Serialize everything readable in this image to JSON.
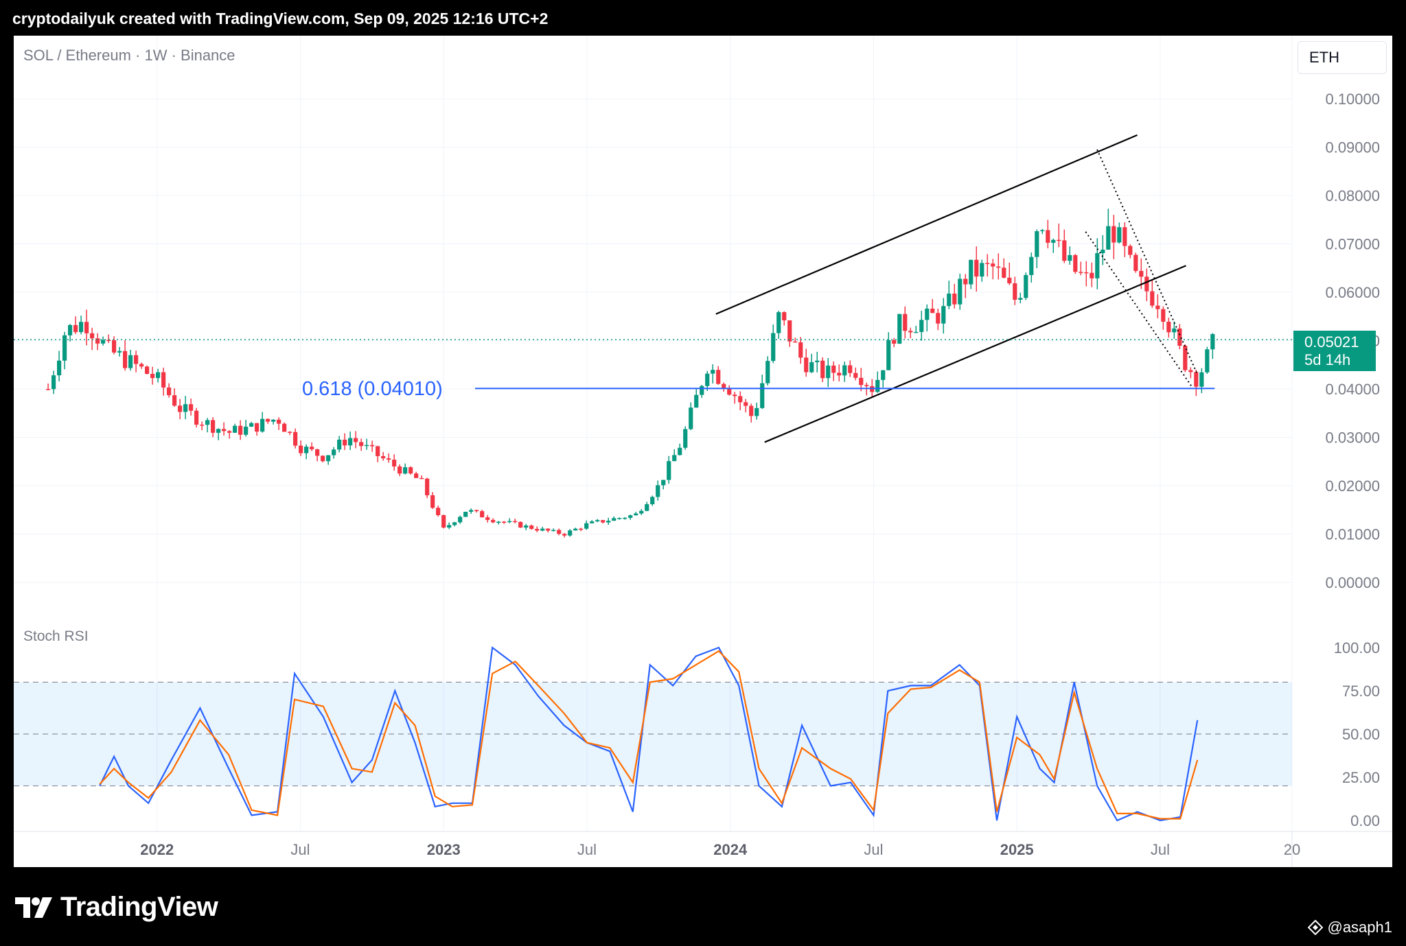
{
  "header": {
    "title": "cryptodailyuk created with TradingView.com, Sep 09, 2025 12:16 UTC+2"
  },
  "chart": {
    "symbol_label": "SOL / Ethereum · 1W · Binance",
    "currency_button": "ETH",
    "current_price": "0.05021",
    "countdown": "5d 14h",
    "fib_label": "0.618 (0.04010)",
    "indicator_label": "Stoch RSI"
  },
  "footer": {
    "brand": "TradingView",
    "author": "@asaph1"
  },
  "colors": {
    "up": "#089981",
    "down": "#f23645",
    "fib": "#2962ff",
    "k_line": "#2962ff",
    "d_line": "#ff6d00",
    "band": "#2196f3"
  },
  "icons": {
    "brand": "tradingview-logo-icon",
    "author": "tradingview-mark-icon"
  },
  "chart_data": [
    {
      "type": "candlestick",
      "title": "SOL / Ethereum · 1W · Binance",
      "y_axis_labels": [
        "0.10000",
        "0.09000",
        "0.08000",
        "0.07000",
        "0.06000",
        "0.05000",
        "0.04000",
        "0.03000",
        "0.02000",
        "0.01000",
        "0.00000"
      ],
      "x_axis_labels": [
        "2022",
        "Jul",
        "2023",
        "Jul",
        "2024",
        "Jul",
        "2025",
        "Jul",
        "20"
      ],
      "ylim": [
        0,
        0.105
      ],
      "grid": true,
      "current_value": 0.05021,
      "fib_level": {
        "label": "0.618 (0.04010)",
        "value": 0.0401
      },
      "close_path": [
        [
          2021.62,
          0.04
        ],
        [
          2021.68,
          0.052
        ],
        [
          2021.75,
          0.054
        ],
        [
          2021.83,
          0.048
        ],
        [
          2021.92,
          0.045
        ],
        [
          2022.0,
          0.042
        ],
        [
          2022.08,
          0.036
        ],
        [
          2022.17,
          0.033
        ],
        [
          2022.25,
          0.031
        ],
        [
          2022.33,
          0.032
        ],
        [
          2022.42,
          0.034
        ],
        [
          2022.5,
          0.028
        ],
        [
          2022.58,
          0.026
        ],
        [
          2022.67,
          0.03
        ],
        [
          2022.75,
          0.027
        ],
        [
          2022.83,
          0.024
        ],
        [
          2022.92,
          0.021
        ],
        [
          2023.0,
          0.011
        ],
        [
          2023.08,
          0.015
        ],
        [
          2023.17,
          0.013
        ],
        [
          2023.25,
          0.012
        ],
        [
          2023.33,
          0.011
        ],
        [
          2023.42,
          0.01
        ],
        [
          2023.5,
          0.012
        ],
        [
          2023.58,
          0.013
        ],
        [
          2023.67,
          0.014
        ],
        [
          2023.75,
          0.02
        ],
        [
          2023.83,
          0.029
        ],
        [
          2023.92,
          0.045
        ],
        [
          2024.0,
          0.04
        ],
        [
          2024.08,
          0.034
        ],
        [
          2024.17,
          0.055
        ],
        [
          2024.25,
          0.046
        ],
        [
          2024.33,
          0.043
        ],
        [
          2024.42,
          0.045
        ],
        [
          2024.5,
          0.04
        ],
        [
          2024.58,
          0.053
        ],
        [
          2024.67,
          0.054
        ],
        [
          2024.75,
          0.056
        ],
        [
          2024.83,
          0.064
        ],
        [
          2024.92,
          0.065
        ],
        [
          2025.0,
          0.058
        ],
        [
          2025.08,
          0.076
        ],
        [
          2025.17,
          0.066
        ],
        [
          2025.25,
          0.062
        ],
        [
          2025.33,
          0.074
        ],
        [
          2025.42,
          0.062
        ],
        [
          2025.5,
          0.058
        ],
        [
          2025.58,
          0.046
        ],
        [
          2025.63,
          0.042
        ],
        [
          2025.69,
          0.05021
        ]
      ],
      "channel_lines": [
        {
          "from": [
            2023.95,
            0.0555
          ],
          "to": [
            2025.42,
            0.0925
          ]
        },
        {
          "from": [
            2024.12,
            0.029
          ],
          "to": [
            2025.59,
            0.0655
          ]
        }
      ],
      "dotted_lines": [
        {
          "from": [
            2025.28,
            0.0895
          ],
          "to": [
            2025.63,
            0.043
          ]
        },
        {
          "from": [
            2025.24,
            0.0725
          ],
          "to": [
            2025.61,
            0.0405
          ]
        }
      ]
    },
    {
      "type": "line",
      "title": "Stoch RSI",
      "y_axis_labels": [
        "100.00",
        "75.00",
        "50.00",
        "25.00",
        "0.00"
      ],
      "ylim": [
        0,
        100
      ],
      "bands": {
        "upper": 80,
        "middle": 50,
        "lower": 20
      },
      "series": [
        {
          "color": "#2962ff",
          "values": [
            [
              2021.8,
              20
            ],
            [
              2021.85,
              37
            ],
            [
              2021.9,
              20
            ],
            [
              2021.97,
              10
            ],
            [
              2022.05,
              35
            ],
            [
              2022.15,
              65
            ],
            [
              2022.25,
              30
            ],
            [
              2022.33,
              3
            ],
            [
              2022.42,
              5
            ],
            [
              2022.48,
              85
            ],
            [
              2022.58,
              60
            ],
            [
              2022.68,
              22
            ],
            [
              2022.75,
              35
            ],
            [
              2022.83,
              75
            ],
            [
              2022.9,
              45
            ],
            [
              2022.97,
              8
            ],
            [
              2023.03,
              10
            ],
            [
              2023.1,
              10
            ],
            [
              2023.17,
              100
            ],
            [
              2023.25,
              90
            ],
            [
              2023.33,
              72
            ],
            [
              2023.42,
              55
            ],
            [
              2023.5,
              45
            ],
            [
              2023.58,
              40
            ],
            [
              2023.66,
              5
            ],
            [
              2023.72,
              90
            ],
            [
              2023.8,
              78
            ],
            [
              2023.88,
              95
            ],
            [
              2023.96,
              100
            ],
            [
              2024.03,
              78
            ],
            [
              2024.1,
              20
            ],
            [
              2024.18,
              8
            ],
            [
              2024.25,
              55
            ],
            [
              2024.35,
              20
            ],
            [
              2024.42,
              22
            ],
            [
              2024.5,
              3
            ],
            [
              2024.55,
              75
            ],
            [
              2024.63,
              78
            ],
            [
              2024.7,
              78
            ],
            [
              2024.8,
              90
            ],
            [
              2024.87,
              78
            ],
            [
              2024.93,
              0
            ],
            [
              2025.0,
              60
            ],
            [
              2025.08,
              30
            ],
            [
              2025.13,
              22
            ],
            [
              2025.2,
              80
            ],
            [
              2025.28,
              20
            ],
            [
              2025.35,
              0
            ],
            [
              2025.42,
              5
            ],
            [
              2025.5,
              0
            ],
            [
              2025.57,
              2
            ],
            [
              2025.63,
              58
            ]
          ]
        },
        {
          "color": "#ff6d00",
          "values": [
            [
              2021.8,
              21
            ],
            [
              2021.85,
              30
            ],
            [
              2021.9,
              22
            ],
            [
              2021.97,
              13
            ],
            [
              2022.05,
              28
            ],
            [
              2022.15,
              58
            ],
            [
              2022.25,
              38
            ],
            [
              2022.33,
              6
            ],
            [
              2022.42,
              3
            ],
            [
              2022.48,
              70
            ],
            [
              2022.58,
              66
            ],
            [
              2022.68,
              30
            ],
            [
              2022.75,
              28
            ],
            [
              2022.83,
              68
            ],
            [
              2022.9,
              55
            ],
            [
              2022.97,
              14
            ],
            [
              2023.03,
              8
            ],
            [
              2023.1,
              9
            ],
            [
              2023.17,
              85
            ],
            [
              2023.25,
              92
            ],
            [
              2023.33,
              78
            ],
            [
              2023.42,
              62
            ],
            [
              2023.5,
              45
            ],
            [
              2023.58,
              42
            ],
            [
              2023.66,
              22
            ],
            [
              2023.72,
              80
            ],
            [
              2023.8,
              82
            ],
            [
              2023.88,
              90
            ],
            [
              2023.96,
              98
            ],
            [
              2024.03,
              86
            ],
            [
              2024.1,
              30
            ],
            [
              2024.18,
              10
            ],
            [
              2024.25,
              42
            ],
            [
              2024.35,
              30
            ],
            [
              2024.42,
              24
            ],
            [
              2024.5,
              6
            ],
            [
              2024.55,
              62
            ],
            [
              2024.63,
              76
            ],
            [
              2024.7,
              77
            ],
            [
              2024.8,
              87
            ],
            [
              2024.87,
              80
            ],
            [
              2024.93,
              5
            ],
            [
              2025.0,
              48
            ],
            [
              2025.08,
              38
            ],
            [
              2025.13,
              24
            ],
            [
              2025.2,
              74
            ],
            [
              2025.28,
              30
            ],
            [
              2025.35,
              4
            ],
            [
              2025.42,
              4
            ],
            [
              2025.5,
              1
            ],
            [
              2025.57,
              1
            ],
            [
              2025.63,
              35
            ]
          ]
        }
      ]
    }
  ]
}
